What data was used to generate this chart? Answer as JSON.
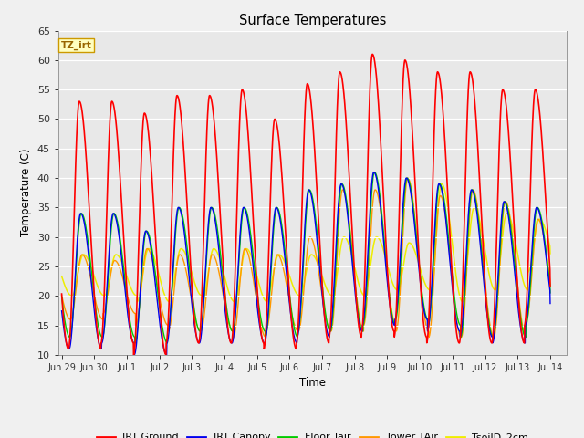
{
  "title": "Surface Temperatures",
  "xlabel": "Time",
  "ylabel": "Temperature (C)",
  "ylim": [
    10,
    65
  ],
  "yticks": [
    10,
    15,
    20,
    25,
    30,
    35,
    40,
    45,
    50,
    55,
    60,
    65
  ],
  "tz_label": "TZ_irt",
  "bg_color": "#f0f0f0",
  "plot_bg": "#e8e8e8",
  "tick_labels": [
    "Jun 29",
    "Jun 30",
    "Jul 1",
    "Jul 2",
    "Jul 3",
    "Jul 4",
    "Jul 5",
    "Jul 6",
    "Jul 7",
    "Jul 8",
    "Jul 9",
    "Jul 10",
    "Jul 11",
    "Jul 12",
    "Jul 13",
    "Jul 14"
  ],
  "num_days": 15,
  "series_colors": {
    "IRT Ground": "#ff0000",
    "IRT Canopy": "#0000ee",
    "Floor Tair": "#00cc00",
    "Tower TAir": "#ff9900",
    "TsoilD_2cm": "#eeee00"
  },
  "irt_ground_peaks": [
    53,
    53,
    51,
    54,
    54,
    55,
    50,
    56,
    58,
    61,
    60,
    58,
    58,
    55,
    55
  ],
  "irt_ground_mins": [
    11,
    12,
    10,
    12,
    12,
    12,
    11,
    12,
    13,
    14,
    13,
    12,
    12,
    12,
    15
  ],
  "canopy_peaks": [
    34,
    34,
    31,
    35,
    35,
    35,
    35,
    38,
    39,
    41,
    40,
    39,
    38,
    36,
    35
  ],
  "canopy_mins": [
    11,
    12,
    10,
    12,
    12,
    12,
    12,
    13,
    14,
    15,
    16,
    14,
    13,
    12,
    15
  ],
  "floor_peaks": [
    34,
    34,
    31,
    35,
    35,
    35,
    35,
    38,
    39,
    41,
    40,
    39,
    38,
    36,
    35
  ],
  "floor_mins": [
    13,
    13,
    12,
    14,
    14,
    14,
    13,
    14,
    14,
    15,
    16,
    15,
    13,
    13,
    15
  ],
  "tower_peaks": [
    27,
    26,
    28,
    27,
    27,
    28,
    27,
    30,
    38,
    38,
    40,
    37,
    38,
    36,
    33
  ],
  "tower_mins": [
    16,
    17,
    15,
    14,
    14,
    13,
    14,
    14,
    14,
    15,
    14,
    13,
    13,
    13,
    16
  ],
  "tsoil_peaks": [
    27,
    27,
    28,
    28,
    28,
    28,
    27,
    27,
    30,
    30,
    29,
    39,
    35,
    34,
    33
  ],
  "tsoil_mins": [
    20,
    20,
    19,
    20,
    19,
    19,
    20,
    20,
    20,
    21,
    21,
    19,
    21,
    21,
    24
  ]
}
